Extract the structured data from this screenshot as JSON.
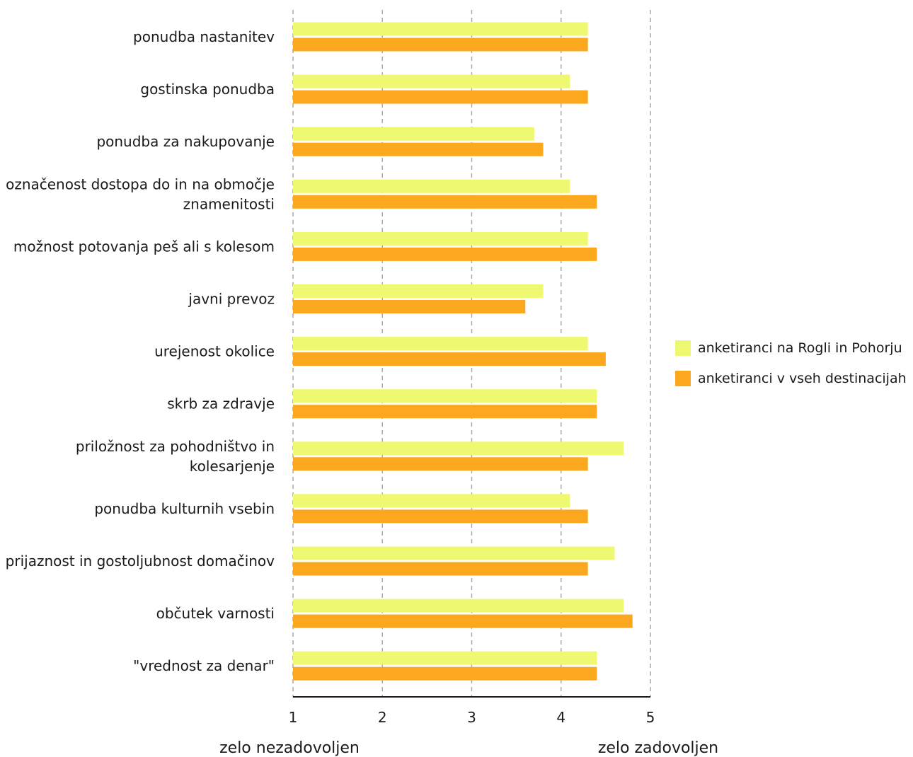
{
  "chart_data": {
    "type": "bar",
    "orientation": "horizontal",
    "categories": [
      [
        "ponudba nastanitev"
      ],
      [
        "gostinska ponudba"
      ],
      [
        "ponudba za nakupovanje"
      ],
      [
        "označenost dostopa do in na območje",
        "znamenitosti"
      ],
      [
        "možnost potovanja peš ali s kolesom"
      ],
      [
        "javni prevoz"
      ],
      [
        "urejenost okolice"
      ],
      [
        "skrb za zdravje"
      ],
      [
        "priložnost za pohodništvo in",
        "kolesarjenje"
      ],
      [
        "ponudba kulturnih vsebin"
      ],
      [
        "prijaznost in gostoljubnost domačinov"
      ],
      [
        "občutek varnosti"
      ],
      [
        "\"vrednost za denar\""
      ]
    ],
    "series": [
      {
        "name": "anketiranci na Rogli in Pohorju",
        "color": "#eef870",
        "values": [
          4.3,
          4.1,
          3.7,
          4.1,
          4.3,
          3.8,
          4.3,
          4.4,
          4.7,
          4.1,
          4.6,
          4.7,
          4.4
        ]
      },
      {
        "name": "anketiranci v vseh destinacijah",
        "color": "#fba81e",
        "values": [
          4.3,
          4.3,
          3.8,
          4.4,
          4.4,
          3.6,
          4.5,
          4.4,
          4.3,
          4.3,
          4.3,
          4.8,
          4.4
        ]
      }
    ],
    "xlim": [
      1,
      5
    ],
    "xticks": [
      "1",
      "2",
      "3",
      "4",
      "5"
    ],
    "x_min_label": "zelo nezadovoljen",
    "x_max_label": "zelo zadovoljen",
    "grid": "vertical dashed",
    "legend_position": "right"
  }
}
